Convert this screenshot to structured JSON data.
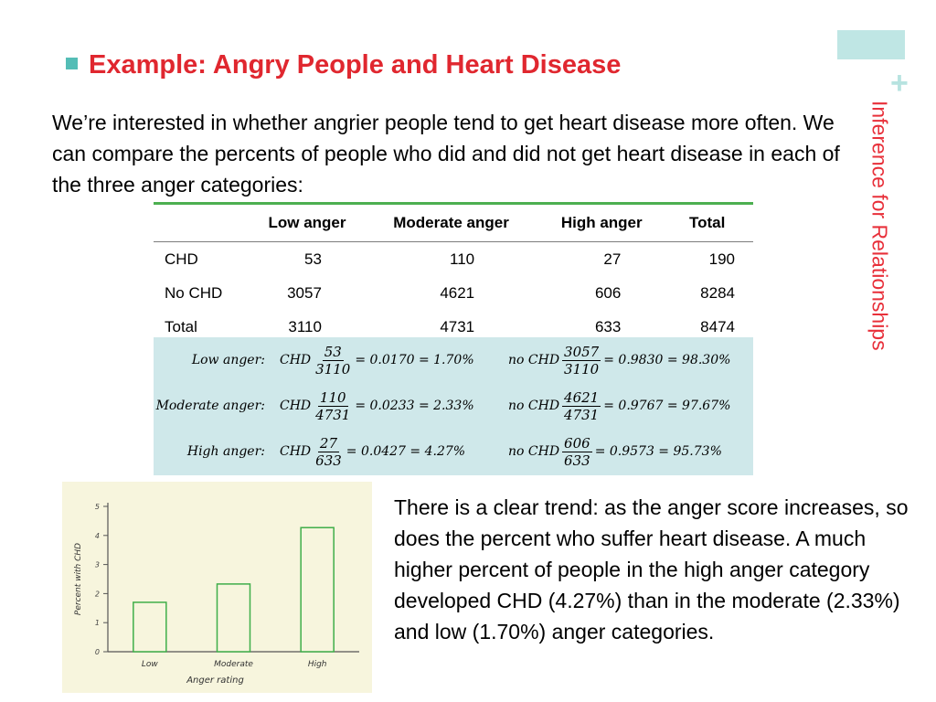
{
  "slide": {
    "title": "Example: Angry People and Heart Disease",
    "side_title": "Inference for Relationships",
    "plus": "+",
    "intro": "We’re interested in whether angrier people tend to get heart disease more often. We can compare the percents of people who did and did not get heart disease in each of the three anger categories:",
    "conclusion": "There is a clear trend: as the anger score increases, so does the percent who suffer heart disease. A much higher percent of people in the high anger category developed CHD (4.27%) than in the moderate (2.33%) and low (1.70%) anger categories."
  },
  "table": {
    "headers": [
      "",
      "Low anger",
      "Moderate anger",
      "High anger",
      "Total"
    ],
    "rows": [
      [
        "CHD",
        "53",
        "110",
        "27",
        "190"
      ],
      [
        "No CHD",
        "3057",
        "4621",
        "606",
        "8284"
      ],
      [
        "Total",
        "3110",
        "4731",
        "633",
        "8474"
      ]
    ]
  },
  "calculations": [
    {
      "label": "Low anger:",
      "chd": "CHD",
      "chd_num": "53",
      "chd_den": "3110",
      "chd_result": "= 0.0170 = 1.70%",
      "nochd": "no CHD",
      "nochd_num": "3057",
      "nochd_den": "3110",
      "nochd_result": "= 0.9830 = 98.30%"
    },
    {
      "label": "Moderate anger:",
      "chd": "CHD",
      "chd_num": "110",
      "chd_den": "4731",
      "chd_result": "= 0.0233 = 2.33%",
      "nochd": "no CHD",
      "nochd_num": "4621",
      "nochd_den": "4731",
      "nochd_result": "= 0.9767 = 97.67%"
    },
    {
      "label": "High anger:",
      "chd": "CHD",
      "chd_num": "27",
      "chd_den": "633",
      "chd_result": "= 0.0427 = 4.27%",
      "nochd": "no CHD",
      "nochd_num": "606",
      "nochd_den": "633",
      "nochd_result": "= 0.9573 = 95.73%"
    }
  ],
  "chart_data": {
    "type": "bar",
    "categories": [
      "Low",
      "Moderate",
      "High"
    ],
    "values": [
      1.7,
      2.33,
      4.27
    ],
    "title": "",
    "xlabel": "Anger rating",
    "ylabel": "Percent with CHD",
    "ylim": [
      0,
      5
    ],
    "yticks": [
      "0",
      "1",
      "2",
      "3",
      "4",
      "5"
    ],
    "grid": false,
    "colors": {
      "bar_stroke": "#3fae49",
      "bar_fill": "#f7f5dd",
      "axis": "#555555",
      "background": "#f7f5dd"
    }
  },
  "colors": {
    "title": "#e0272f",
    "accent_teal": "#54bdb6",
    "rule_green": "#4caf50",
    "calc_bg": "#cfe8ea"
  }
}
